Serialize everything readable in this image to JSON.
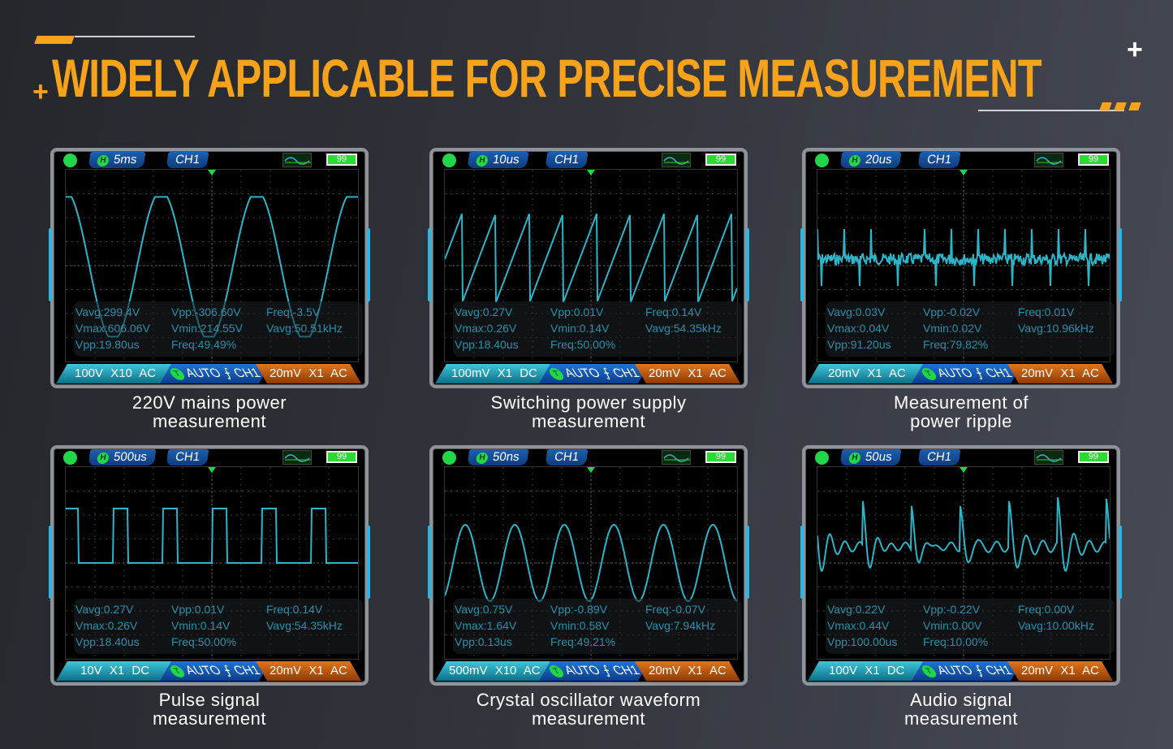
{
  "title": "WIDELY APPLICABLE FOR PRECISE MEASUREMENT",
  "colors": {
    "accent": "#f7a21b",
    "trace": "#2bb5c8",
    "stats_text": "#2b8fa8"
  },
  "panels": [
    {
      "timebase": "5ms",
      "channel": "CH1",
      "battery": "99",
      "waveform": "clipped-sine",
      "stats": [
        "Vavg:299.4V",
        "Vpp:-306.60V",
        "Freq:-3.5V",
        "Vmax:606.06V",
        "Vmin:214.55V",
        "Vavg:50.51kHz",
        "Vpp:19.80us",
        "Freq:49.49%"
      ],
      "ch1_setting": "100V X10 AC",
      "trigger_badge": "T",
      "trigger": "AUTO ⨍ CH1",
      "ch2_setting": "20mV X1 AC",
      "caption": [
        "220V mains power",
        "measurement"
      ]
    },
    {
      "timebase": "10us",
      "channel": "CH1",
      "battery": "99",
      "waveform": "sawtooth",
      "stats": [
        "Vavg:0.27V",
        "Vpp:0.01V",
        "Freq:0.14V",
        "Vmax:0.26V",
        "Vmin:0.14V",
        "Vavg:54.35kHz",
        "Vpp:18.40us",
        "Freq:50.00%"
      ],
      "ch1_setting": "100mV X1 DC",
      "trigger_badge": "T",
      "trigger": "AUTO ⨍ CH1",
      "ch2_setting": "20mV X1 AC",
      "caption": [
        "Switching power supply",
        "measurement"
      ]
    },
    {
      "timebase": "20us",
      "channel": "CH1",
      "battery": "99",
      "waveform": "ripple",
      "stats": [
        "Vavg:0.03V",
        "Vpp:-0.02V",
        "Freq:0.01V",
        "Vmax:0.04V",
        "Vmin:0.02V",
        "Vavg:10.96kHz",
        "Vpp:91.20us",
        "Freq:79.82%"
      ],
      "ch1_setting": "20mV X1 AC",
      "trigger_badge": "T",
      "trigger": "AUTO ⨍ CH1",
      "ch2_setting": "20mV X1 AC",
      "caption": [
        "Measurement of",
        "power ripple"
      ]
    },
    {
      "timebase": "500us",
      "channel": "CH1",
      "battery": "99",
      "waveform": "pulse",
      "stats": [
        "Vavg:0.27V",
        "Vpp:0.01V",
        "Freq:0.14V",
        "Vmax:0.26V",
        "Vmin:0.14V",
        "Vavg:54.35kHz",
        "Vpp:18.40us",
        "Freq:50.00%"
      ],
      "ch1_setting": "10V X1 DC",
      "trigger_badge": "T",
      "trigger": "AUTO ⨍ CH1",
      "ch2_setting": "20mV X1 AC",
      "caption": [
        "Pulse signal",
        "measurement"
      ]
    },
    {
      "timebase": "50ns",
      "channel": "CH1",
      "battery": "99",
      "waveform": "sine",
      "stats": [
        "Vavg:0.75V",
        "Vpp:-0.89V",
        "Freq:-0.07V",
        "Vmax:1.64V",
        "Vmin:0.58V",
        "Vavg:7.94kHz",
        "Vpp:0.13us",
        "Freq:49.21%"
      ],
      "ch1_setting": "500mV X10 AC",
      "trigger_badge": "T",
      "trigger": "AUTO ⨍ CH1",
      "ch2_setting": "20mV X1 AC",
      "caption": [
        "Crystal oscillator waveform",
        "measurement"
      ]
    },
    {
      "timebase": "50us",
      "channel": "CH1",
      "battery": "99",
      "waveform": "audio",
      "stats": [
        "Vavg:0.22V",
        "Vpp:-0.22V",
        "Freq:0.00V",
        "Vmax:0.44V",
        "Vmin:0.00V",
        "Vavg:10.00kHz",
        "Vpp:100.00us",
        "Freq:10.00%"
      ],
      "ch1_setting": "100V X1 DC",
      "trigger_badge": "T",
      "trigger": "AUTO ⨍ CH1",
      "ch2_setting": "20mV X1 AC",
      "caption": [
        "Audio signal",
        "measurement"
      ]
    }
  ]
}
